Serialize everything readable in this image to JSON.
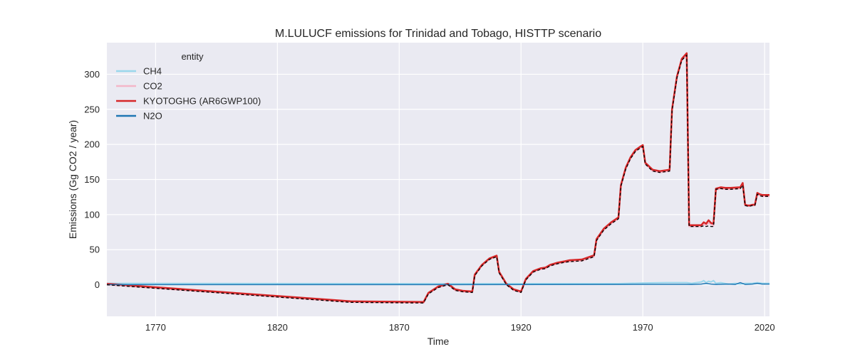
{
  "chart_data": {
    "type": "line",
    "title": "M.LULUCF emissions for Trinidad and Tobago, HISTTP scenario",
    "xlabel": "Time",
    "ylabel": "Emissions (Gg CO2 / year)",
    "xlim": [
      1750,
      2022
    ],
    "ylim": [
      -45,
      345
    ],
    "xticks": [
      1770,
      1820,
      1870,
      1920,
      1970,
      2020
    ],
    "yticks": [
      0,
      50,
      100,
      150,
      200,
      250,
      300
    ],
    "grid": true,
    "background": "#eaeaf2",
    "legend": {
      "title": "entity",
      "placement": "top-left"
    },
    "series": [
      {
        "name": "CH4",
        "color": "#9ad7ec",
        "x": [
          1750,
          1890,
          1960,
          1970,
          1980,
          1988,
          1990,
          1994,
          1995,
          1996,
          1997,
          1998,
          1999,
          2000,
          2002,
          2005,
          2008,
          2010,
          2012,
          2015,
          2017,
          2019,
          2022
        ],
        "y": [
          2,
          1.5,
          1.6,
          2.5,
          3,
          3,
          2,
          4,
          6,
          3,
          5,
          4,
          6,
          2,
          3,
          1,
          2,
          1,
          2,
          2,
          3,
          2,
          2
        ]
      },
      {
        "name": "CO2",
        "color": "#f4b6c8",
        "x": [
          1750,
          1850,
          1880,
          1882,
          1886,
          1890,
          1893,
          1896,
          1900,
          1901,
          1904,
          1907,
          1910,
          1911,
          1914,
          1917,
          1920,
          1922,
          1925,
          1928,
          1930,
          1932,
          1935,
          1938,
          1940,
          1945,
          1950,
          1951,
          1954,
          1957,
          1960,
          1961,
          1963,
          1965,
          1967,
          1969,
          1970,
          1971,
          1974,
          1977,
          1981,
          1982,
          1984,
          1986,
          1988,
          1989,
          1994,
          1995,
          1996,
          1997,
          1998,
          1999,
          2000,
          2002,
          2004,
          2006,
          2010,
          2011,
          2012,
          2013,
          2014,
          2015,
          2016,
          2017,
          2018,
          2019,
          2020,
          2022
        ],
        "y": [
          0,
          -25,
          -26,
          -13,
          -4,
          0,
          -8,
          -10,
          -11,
          13,
          27,
          36,
          40,
          17,
          0,
          -8,
          -11,
          7,
          18,
          22,
          23,
          27,
          30,
          32,
          33,
          34,
          40,
          63,
          78,
          87,
          94,
          140,
          165,
          180,
          190,
          195,
          197,
          172,
          162,
          160,
          162,
          248,
          295,
          320,
          327,
          83,
          83,
          86,
          85,
          88,
          86,
          84,
          135,
          137,
          136,
          136,
          137,
          142,
          113,
          112,
          112,
          113,
          113,
          129,
          127,
          126,
          126,
          126
        ]
      },
      {
        "name": "KYOTOGHG (AR6GWP100)",
        "color": "#d62728",
        "x": [
          1750,
          1850,
          1880,
          1882,
          1886,
          1890,
          1893,
          1896,
          1900,
          1901,
          1904,
          1907,
          1910,
          1911,
          1914,
          1917,
          1920,
          1922,
          1925,
          1928,
          1930,
          1932,
          1935,
          1938,
          1940,
          1945,
          1950,
          1951,
          1954,
          1957,
          1960,
          1961,
          1963,
          1965,
          1967,
          1969,
          1970,
          1971,
          1974,
          1977,
          1981,
          1982,
          1984,
          1986,
          1988,
          1989,
          1994,
          1995,
          1996,
          1997,
          1998,
          1999,
          2000,
          2002,
          2004,
          2006,
          2010,
          2011,
          2012,
          2013,
          2014,
          2015,
          2016,
          2017,
          2018,
          2019,
          2020,
          2022
        ],
        "y": [
          1.5,
          -23.5,
          -24.5,
          -11.5,
          -2.5,
          1.5,
          -6.5,
          -8.5,
          -9.5,
          14.5,
          28.5,
          37.5,
          41.5,
          18.5,
          1.5,
          -6.5,
          -9.5,
          8.5,
          19.5,
          23.5,
          24.5,
          28.5,
          31.5,
          33.5,
          35,
          36,
          42,
          65,
          80,
          89,
          96,
          142,
          167,
          182,
          192,
          197,
          199,
          174,
          164,
          162,
          164,
          250,
          297,
          322,
          330,
          85,
          85,
          89,
          87,
          92,
          88,
          87,
          137,
          139,
          138,
          138,
          139,
          145,
          114,
          113,
          113,
          114,
          114,
          131,
          129,
          128,
          128,
          128
        ]
      },
      {
        "name": "N2O",
        "color": "#1f77b4",
        "x": [
          1750,
          1890,
          1960,
          1970,
          1988,
          1990,
          1994,
          1996,
          1998,
          2000,
          2005,
          2008,
          2010,
          2012,
          2015,
          2017,
          2019,
          2022
        ],
        "y": [
          0.2,
          0.2,
          0.5,
          0.6,
          0.6,
          0.5,
          1,
          2,
          1,
          0.5,
          1,
          0.5,
          3,
          0.5,
          1,
          2,
          1,
          1
        ]
      }
    ],
    "reference_line": {
      "style": "dashed",
      "color": "#000000",
      "x": [
        1750,
        1850,
        1880,
        1882,
        1886,
        1890,
        1893,
        1896,
        1900,
        1901,
        1904,
        1907,
        1910,
        1911,
        1914,
        1917,
        1920,
        1922,
        1925,
        1928,
        1930,
        1932,
        1935,
        1938,
        1940,
        1945,
        1950,
        1951,
        1954,
        1957,
        1960,
        1961,
        1963,
        1965,
        1967,
        1969,
        1970,
        1971,
        1974,
        1977,
        1981,
        1982,
        1984,
        1986,
        1988,
        1989,
        1994,
        1995,
        1996,
        1997,
        1998,
        1999,
        2000,
        2002,
        2004,
        2006,
        2010,
        2011,
        2012,
        2013,
        2014,
        2015,
        2016,
        2017,
        2018,
        2019,
        2020,
        2022
      ],
      "y": [
        0,
        -25,
        -26,
        -13,
        -4,
        0,
        -8,
        -10,
        -11,
        13,
        27,
        36,
        40,
        17,
        0,
        -8,
        -11,
        7,
        18,
        22,
        23,
        27,
        30,
        32,
        33,
        34,
        40,
        63,
        78,
        87,
        94,
        140,
        165,
        180,
        190,
        195,
        197,
        172,
        162,
        160,
        162,
        248,
        295,
        320,
        327,
        83,
        83,
        84,
        83,
        84,
        83,
        83,
        136,
        137,
        136,
        136,
        137,
        142,
        113,
        112,
        112,
        113,
        113,
        129,
        127,
        126,
        126,
        126
      ]
    }
  }
}
